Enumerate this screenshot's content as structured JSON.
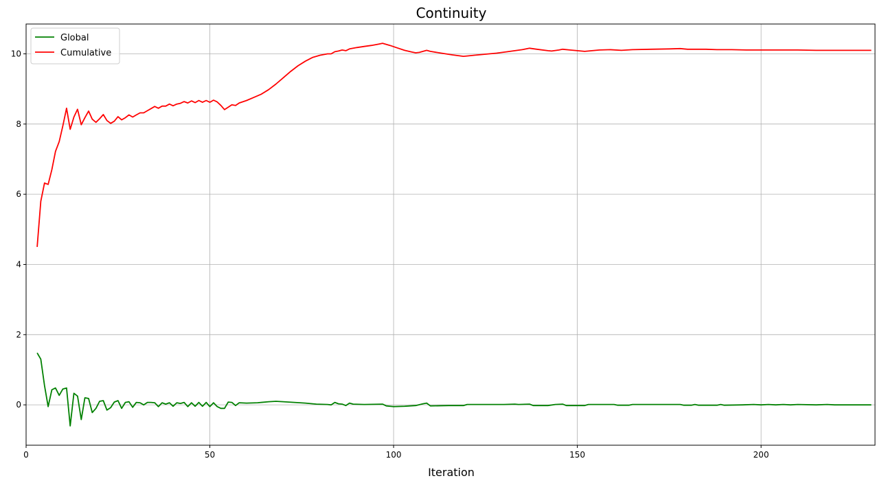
{
  "chart_data": {
    "type": "line",
    "title": "Continuity",
    "xlabel": "Iteration",
    "ylabel": "",
    "xlim": [
      0,
      231
    ],
    "ylim": [
      -1.15,
      10.85
    ],
    "xticks": [
      0,
      50,
      100,
      150,
      200
    ],
    "yticks": [
      0,
      2,
      4,
      6,
      8,
      10
    ],
    "grid": true,
    "legend_position": "top-left",
    "series": [
      {
        "name": "Global",
        "color": "#008000",
        "points": [
          [
            3,
            1.48
          ],
          [
            4,
            1.3
          ],
          [
            5,
            0.55
          ],
          [
            6,
            -0.05
          ],
          [
            7,
            0.43
          ],
          [
            8,
            0.48
          ],
          [
            9,
            0.27
          ],
          [
            10,
            0.45
          ],
          [
            11,
            0.48
          ],
          [
            12,
            -0.6
          ],
          [
            13,
            0.33
          ],
          [
            14,
            0.25
          ],
          [
            15,
            -0.42
          ],
          [
            16,
            0.2
          ],
          [
            17,
            0.18
          ],
          [
            18,
            -0.22
          ],
          [
            19,
            -0.1
          ],
          [
            20,
            0.1
          ],
          [
            21,
            0.12
          ],
          [
            22,
            -0.15
          ],
          [
            23,
            -0.08
          ],
          [
            24,
            0.08
          ],
          [
            25,
            0.12
          ],
          [
            26,
            -0.1
          ],
          [
            27,
            0.07
          ],
          [
            28,
            0.09
          ],
          [
            29,
            -0.07
          ],
          [
            30,
            0.07
          ],
          [
            31,
            0.06
          ],
          [
            32,
            0.0
          ],
          [
            33,
            0.07
          ],
          [
            34,
            0.07
          ],
          [
            35,
            0.06
          ],
          [
            36,
            -0.05
          ],
          [
            37,
            0.06
          ],
          [
            38,
            0.02
          ],
          [
            39,
            0.06
          ],
          [
            40,
            -0.04
          ],
          [
            41,
            0.06
          ],
          [
            42,
            0.04
          ],
          [
            43,
            0.07
          ],
          [
            44,
            -0.05
          ],
          [
            45,
            0.06
          ],
          [
            46,
            -0.04
          ],
          [
            47,
            0.07
          ],
          [
            48,
            -0.04
          ],
          [
            49,
            0.07
          ],
          [
            50,
            -0.05
          ],
          [
            51,
            0.06
          ],
          [
            52,
            -0.05
          ],
          [
            53,
            -0.1
          ],
          [
            54,
            -0.1
          ],
          [
            55,
            0.08
          ],
          [
            56,
            0.07
          ],
          [
            57,
            -0.02
          ],
          [
            58,
            0.06
          ],
          [
            60,
            0.05
          ],
          [
            63,
            0.06
          ],
          [
            66,
            0.09
          ],
          [
            68,
            0.1
          ],
          [
            70,
            0.09
          ],
          [
            73,
            0.07
          ],
          [
            76,
            0.05
          ],
          [
            79,
            0.02
          ],
          [
            82,
            0.01
          ],
          [
            83,
            0.0
          ],
          [
            84,
            0.07
          ],
          [
            85,
            0.03
          ],
          [
            86,
            0.02
          ],
          [
            87,
            -0.02
          ],
          [
            88,
            0.05
          ],
          [
            89,
            0.02
          ],
          [
            92,
            0.01
          ],
          [
            97,
            0.02
          ],
          [
            98,
            -0.03
          ],
          [
            100,
            -0.05
          ],
          [
            103,
            -0.04
          ],
          [
            106,
            -0.02
          ],
          [
            108,
            0.03
          ],
          [
            109,
            0.05
          ],
          [
            110,
            -0.03
          ],
          [
            115,
            -0.02
          ],
          [
            119,
            -0.02
          ],
          [
            120,
            0.01
          ],
          [
            125,
            0.01
          ],
          [
            130,
            0.01
          ],
          [
            133,
            0.02
          ],
          [
            134,
            0.01
          ],
          [
            137,
            0.02
          ],
          [
            138,
            -0.02
          ],
          [
            142,
            -0.02
          ],
          [
            144,
            0.01
          ],
          [
            146,
            0.02
          ],
          [
            147,
            -0.02
          ],
          [
            152,
            -0.02
          ],
          [
            153,
            0.01
          ],
          [
            157,
            0.01
          ],
          [
            160,
            0.01
          ],
          [
            161,
            -0.01
          ],
          [
            164,
            -0.01
          ],
          [
            165,
            0.01
          ],
          [
            170,
            0.01
          ],
          [
            178,
            0.01
          ],
          [
            179,
            -0.01
          ],
          [
            181,
            -0.01
          ],
          [
            182,
            0.01
          ],
          [
            183,
            -0.01
          ],
          [
            188,
            -0.01
          ],
          [
            189,
            0.01
          ],
          [
            190,
            -0.01
          ],
          [
            195,
            0.0
          ],
          [
            198,
            0.01
          ],
          [
            200,
            0.0
          ],
          [
            202,
            0.01
          ],
          [
            204,
            0.0
          ],
          [
            206,
            0.01
          ],
          [
            208,
            0.0
          ],
          [
            210,
            0.01
          ],
          [
            215,
            0.0
          ],
          [
            218,
            0.01
          ],
          [
            220,
            0.0
          ],
          [
            225,
            0.0
          ],
          [
            230,
            0.0
          ]
        ]
      },
      {
        "name": "Cumulative",
        "color": "#ff0000",
        "points": [
          [
            3,
            4.5
          ],
          [
            4,
            5.8
          ],
          [
            5,
            6.32
          ],
          [
            6,
            6.28
          ],
          [
            7,
            6.7
          ],
          [
            8,
            7.22
          ],
          [
            9,
            7.5
          ],
          [
            10,
            7.95
          ],
          [
            11,
            8.45
          ],
          [
            12,
            7.85
          ],
          [
            13,
            8.2
          ],
          [
            14,
            8.42
          ],
          [
            15,
            7.98
          ],
          [
            16,
            8.18
          ],
          [
            17,
            8.37
          ],
          [
            18,
            8.14
          ],
          [
            19,
            8.05
          ],
          [
            20,
            8.15
          ],
          [
            21,
            8.27
          ],
          [
            22,
            8.1
          ],
          [
            23,
            8.02
          ],
          [
            24,
            8.08
          ],
          [
            25,
            8.21
          ],
          [
            26,
            8.12
          ],
          [
            27,
            8.18
          ],
          [
            28,
            8.26
          ],
          [
            29,
            8.2
          ],
          [
            30,
            8.26
          ],
          [
            31,
            8.32
          ],
          [
            32,
            8.32
          ],
          [
            33,
            8.38
          ],
          [
            34,
            8.44
          ],
          [
            35,
            8.5
          ],
          [
            36,
            8.45
          ],
          [
            37,
            8.51
          ],
          [
            38,
            8.51
          ],
          [
            39,
            8.57
          ],
          [
            40,
            8.52
          ],
          [
            41,
            8.57
          ],
          [
            42,
            8.59
          ],
          [
            43,
            8.64
          ],
          [
            44,
            8.6
          ],
          [
            45,
            8.66
          ],
          [
            46,
            8.61
          ],
          [
            47,
            8.67
          ],
          [
            48,
            8.62
          ],
          [
            49,
            8.67
          ],
          [
            50,
            8.62
          ],
          [
            51,
            8.68
          ],
          [
            52,
            8.63
          ],
          [
            53,
            8.53
          ],
          [
            54,
            8.41
          ],
          [
            55,
            8.48
          ],
          [
            56,
            8.55
          ],
          [
            57,
            8.53
          ],
          [
            58,
            8.6
          ],
          [
            60,
            8.67
          ],
          [
            62,
            8.76
          ],
          [
            64,
            8.85
          ],
          [
            66,
            8.98
          ],
          [
            68,
            9.14
          ],
          [
            70,
            9.32
          ],
          [
            72,
            9.5
          ],
          [
            74,
            9.66
          ],
          [
            76,
            9.79
          ],
          [
            78,
            9.9
          ],
          [
            80,
            9.96
          ],
          [
            82,
            10.0
          ],
          [
            83,
            10.0
          ],
          [
            84,
            10.06
          ],
          [
            85,
            10.08
          ],
          [
            86,
            10.11
          ],
          [
            87,
            10.09
          ],
          [
            88,
            10.14
          ],
          [
            90,
            10.18
          ],
          [
            92,
            10.21
          ],
          [
            94,
            10.24
          ],
          [
            96,
            10.28
          ],
          [
            97,
            10.3
          ],
          [
            99,
            10.24
          ],
          [
            101,
            10.17
          ],
          [
            103,
            10.1
          ],
          [
            105,
            10.05
          ],
          [
            106,
            10.03
          ],
          [
            107,
            10.04
          ],
          [
            109,
            10.1
          ],
          [
            110,
            10.07
          ],
          [
            113,
            10.02
          ],
          [
            116,
            9.97
          ],
          [
            119,
            9.93
          ],
          [
            120,
            9.94
          ],
          [
            122,
            9.96
          ],
          [
            125,
            9.99
          ],
          [
            128,
            10.02
          ],
          [
            131,
            10.06
          ],
          [
            133,
            10.09
          ],
          [
            135,
            10.12
          ],
          [
            137,
            10.16
          ],
          [
            139,
            10.13
          ],
          [
            142,
            10.09
          ],
          [
            143,
            10.08
          ],
          [
            145,
            10.11
          ],
          [
            146,
            10.13
          ],
          [
            148,
            10.11
          ],
          [
            150,
            10.09
          ],
          [
            152,
            10.07
          ],
          [
            154,
            10.09
          ],
          [
            156,
            10.11
          ],
          [
            159,
            10.12
          ],
          [
            162,
            10.1
          ],
          [
            165,
            10.12
          ],
          [
            170,
            10.13
          ],
          [
            175,
            10.14
          ],
          [
            178,
            10.15
          ],
          [
            180,
            10.13
          ],
          [
            185,
            10.13
          ],
          [
            188,
            10.12
          ],
          [
            192,
            10.12
          ],
          [
            196,
            10.11
          ],
          [
            200,
            10.11
          ],
          [
            205,
            10.11
          ],
          [
            210,
            10.11
          ],
          [
            215,
            10.1
          ],
          [
            220,
            10.1
          ],
          [
            225,
            10.1
          ],
          [
            230,
            10.1
          ]
        ]
      }
    ]
  }
}
